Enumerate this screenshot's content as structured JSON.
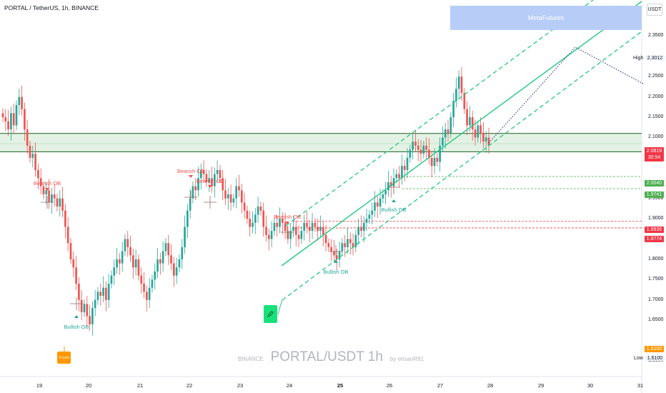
{
  "header": {
    "symbol_title": "PORTAL / TetherUS, 1h, BINANCE"
  },
  "banner": {
    "label": "MetaFutures"
  },
  "price_axis": {
    "currency": "USDT",
    "ticks": [
      "2.3500",
      "2.2500",
      "2.2000",
      "2.1500",
      "2.1000",
      "2.0500",
      "1.9500",
      "1.9000",
      "1.8500",
      "1.8000",
      "1.7500",
      "1.7000",
      "1.6500",
      "1.5500"
    ],
    "ylim": [
      1.55,
      2.4
    ]
  },
  "time_axis": {
    "ticks": [
      {
        "label": "19",
        "bold": false
      },
      {
        "label": "20",
        "bold": false
      },
      {
        "label": "21",
        "bold": false
      },
      {
        "label": "22",
        "bold": false
      },
      {
        "label": "23",
        "bold": false
      },
      {
        "label": "24",
        "bold": false
      },
      {
        "label": "25",
        "bold": true
      },
      {
        "label": "26",
        "bold": false
      },
      {
        "label": "27",
        "bold": false
      },
      {
        "label": "28",
        "bold": false
      },
      {
        "label": "29",
        "bold": false
      },
      {
        "label": "30",
        "bold": false
      },
      {
        "label": "31",
        "bold": false
      }
    ]
  },
  "price_tags": {
    "current": {
      "price": "2.0819",
      "countdown": "30:54",
      "color": "#f23645"
    },
    "level_2004": {
      "price": "2.0040",
      "color": "#4caf50"
    },
    "level_1974": {
      "price": "1.9741",
      "color": "#4caf50"
    },
    "level_1894": {
      "price": "1.8936",
      "color": "#f23645"
    },
    "level_1877": {
      "price": "1.8774",
      "color": "#f23645"
    },
    "low_tag": {
      "price": "1.6100",
      "color": "#ff9800"
    }
  },
  "high_low": {
    "high_label": "High",
    "high_value": "2.3012",
    "low_label": "Low",
    "low_value": "1.6100"
  },
  "annotations": {
    "bearish_ob": "Bearish OB",
    "bullish_ob": "Bullish OB",
    "x_low": "X-Low"
  },
  "watermark": {
    "exchange": "BINANCE",
    "symbol": "PORTAL/USDT 1h",
    "author": "by ehsanR91"
  },
  "colors": {
    "up": "#26a69a",
    "down": "#ef5350",
    "channel": "#22c983",
    "zone_fill": "#e3f2e4",
    "zone_line": "#1b5e20",
    "projection": "#1a237e",
    "banner": "#b7cdf7"
  },
  "chart_data": {
    "type": "candlestick",
    "x_start": "Mar 18 (hourly)",
    "description_values": "approximate hourly closes read from the chart",
    "closes": [
      2.15,
      2.14,
      2.12,
      2.16,
      2.13,
      2.18,
      2.2,
      2.17,
      2.12,
      2.08,
      2.05,
      2.06,
      2.02,
      2.0,
      1.98,
      1.96,
      1.97,
      1.94,
      1.96,
      1.95,
      1.93,
      1.95,
      1.92,
      1.88,
      1.84,
      1.8,
      1.78,
      1.74,
      1.7,
      1.67,
      1.69,
      1.66,
      1.64,
      1.68,
      1.7,
      1.72,
      1.71,
      1.73,
      1.7,
      1.74,
      1.76,
      1.78,
      1.8,
      1.79,
      1.82,
      1.85,
      1.83,
      1.81,
      1.78,
      1.8,
      1.76,
      1.74,
      1.72,
      1.7,
      1.73,
      1.75,
      1.77,
      1.8,
      1.79,
      1.82,
      1.84,
      1.81,
      1.79,
      1.76,
      1.78,
      1.8,
      1.83,
      1.88,
      1.92,
      1.95,
      1.98,
      1.97,
      2.0,
      2.02,
      2.01,
      1.99,
      2.0,
      1.98,
      2.01,
      2.02,
      2.0,
      1.97,
      1.95,
      1.96,
      1.94,
      1.95,
      1.98,
      1.97,
      1.94,
      1.92,
      1.9,
      1.88,
      1.89,
      1.91,
      1.93,
      1.92,
      1.88,
      1.86,
      1.85,
      1.87,
      1.89,
      1.88,
      1.9,
      1.89,
      1.87,
      1.85,
      1.87,
      1.88,
      1.86,
      1.85,
      1.87,
      1.89,
      1.88,
      1.87,
      1.89,
      1.88,
      1.87,
      1.88,
      1.86,
      1.84,
      1.83,
      1.82,
      1.81,
      1.8,
      1.82,
      1.84,
      1.83,
      1.85,
      1.84,
      1.83,
      1.86,
      1.88,
      1.87,
      1.89,
      1.9,
      1.91,
      1.92,
      1.94,
      1.93,
      1.95,
      1.96,
      1.97,
      1.99,
      1.98,
      2.0,
      2.01,
      2.0,
      2.03,
      2.02,
      2.05,
      2.07,
      2.09,
      2.08,
      2.07,
      2.06,
      2.08,
      2.07,
      2.05,
      2.03,
      2.05,
      2.04,
      2.08,
      2.1,
      2.12,
      2.11,
      2.15,
      2.19,
      2.22,
      2.25,
      2.21,
      2.17,
      2.13,
      2.15,
      2.12,
      2.1,
      2.13,
      2.11,
      2.09,
      2.1,
      2.08
    ],
    "zone": [
      2.065,
      2.11
    ],
    "levels": [
      2.004,
      1.9741,
      1.8936,
      1.8774
    ],
    "current_price": 2.0819,
    "high": 2.3012,
    "low": 1.61,
    "projection_target": 2.3012
  }
}
